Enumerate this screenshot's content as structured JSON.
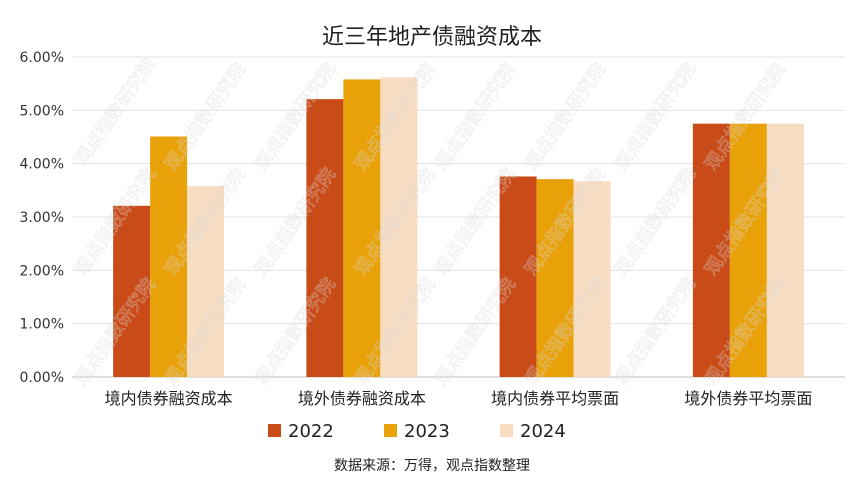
{
  "chart_data": {
    "type": "bar",
    "title": "近三年地产债融资成本",
    "categories": [
      "境内债券融资成本",
      "境外债券融资成本",
      "境内债券平均票面",
      "境外债券平均票面"
    ],
    "series": [
      {
        "name": "2022",
        "values": [
          3.21,
          5.21,
          3.76,
          4.75
        ],
        "color": "#C94B17"
      },
      {
        "name": "2023",
        "values": [
          4.51,
          5.58,
          3.71,
          4.75
        ],
        "color": "#E9A10A"
      },
      {
        "name": "2024",
        "values": [
          3.58,
          5.62,
          3.67,
          4.75
        ],
        "color": "#F8DDC2"
      }
    ],
    "yticks": [
      "0.00%",
      "1.00%",
      "2.00%",
      "3.00%",
      "4.00%",
      "5.00%",
      "6.00%"
    ],
    "ylim": [
      0,
      6
    ],
    "grid": true,
    "legend_position": "bottom",
    "source_note": "数据来源：万得，观点指数整理",
    "watermark_text": "观点指数研究院"
  }
}
